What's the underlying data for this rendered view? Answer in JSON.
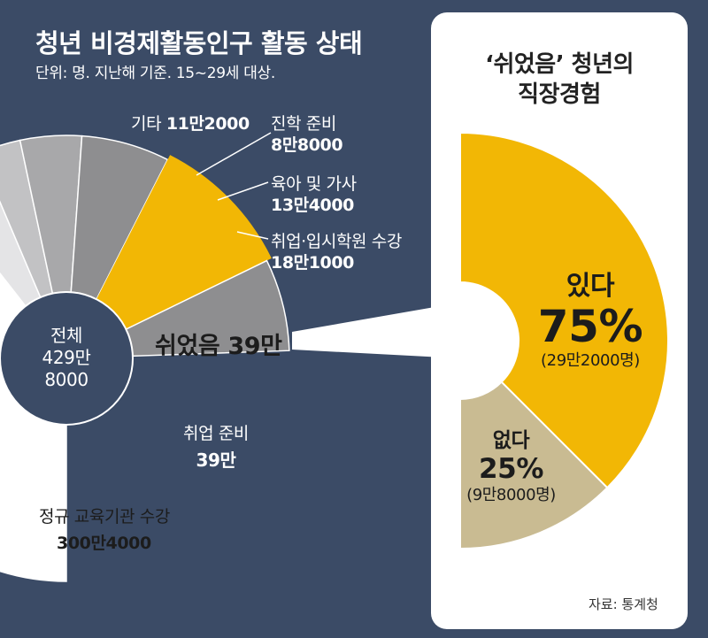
{
  "title": "청년 비경제활동인구 활동 상태",
  "subtitle": "단위: 명. 지난해 기준. 15~29세 대상.",
  "colors": {
    "background": "#3b4b66",
    "accent": "#f2b705",
    "white_slice": "#ffffff",
    "light_gray": "#e4e4e6",
    "mid_gray": "#c2c2c4",
    "gray": "#a8a8aa",
    "dark_gray": "#8e8e90",
    "khaki": "#c9bb92"
  },
  "chart_data": [
    {
      "type": "pie",
      "center_label": [
        "전체",
        "429만",
        "8000"
      ],
      "slices": [
        {
          "name": "정규 교육기관 수강",
          "value_label": "300만4000",
          "value": 3004000
        },
        {
          "name": "기타",
          "value_label": "11만2000",
          "value": 112000
        },
        {
          "name": "진학 준비",
          "value_label": "8만8000",
          "value": 88000
        },
        {
          "name": "육아 및 가사",
          "value_label": "13만4000",
          "value": 134000
        },
        {
          "name": "취업·입시학원 수강",
          "value_label": "18만1000",
          "value": 181000
        },
        {
          "name": "쉬었음",
          "value_label": "39만",
          "value": 390000,
          "highlight": true
        },
        {
          "name": "취업 준비",
          "value_label": "39만",
          "value": 390000
        }
      ]
    },
    {
      "type": "pie",
      "title": [
        "‘쉬었음’ 청년의",
        "직장경험"
      ],
      "slices": [
        {
          "name": "있다",
          "percent": 75,
          "percent_label": "75%",
          "count_label": "(29만2000명)"
        },
        {
          "name": "없다",
          "percent": 25,
          "percent_label": "25%",
          "count_label": "(9만8000명)"
        }
      ]
    }
  ],
  "source": "자료: 통계청"
}
